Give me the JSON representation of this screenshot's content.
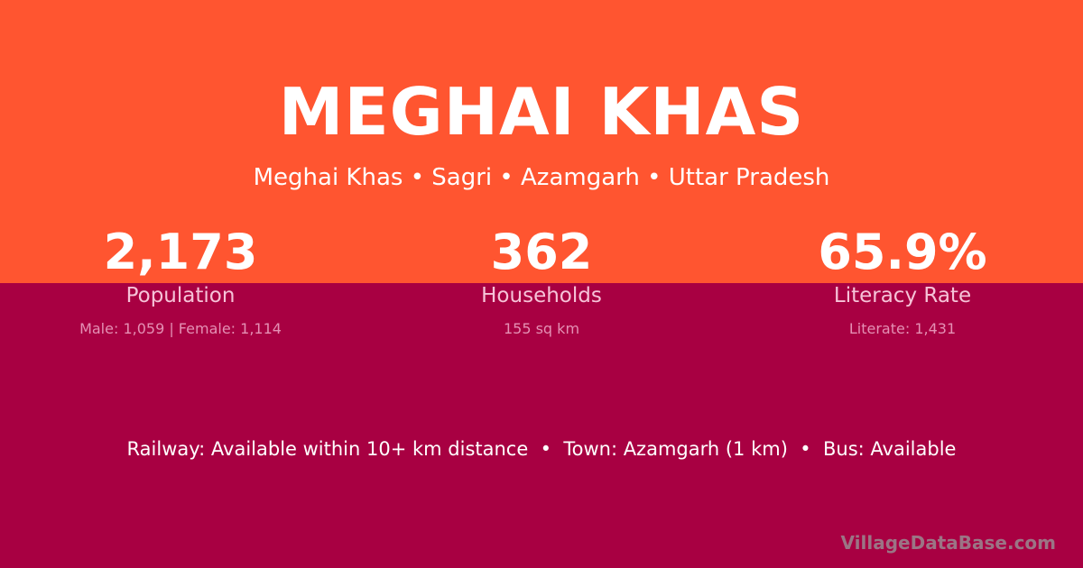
{
  "title": "MEGHAI KHAS",
  "subtitle": "Meghai Khas • Sagri • Azamgarh • Uttar Pradesh",
  "stats": [
    {
      "value": "2,173",
      "label": "Population",
      "detail": "Male: 1,059 | Female: 1,114"
    },
    {
      "value": "362",
      "label": "Households",
      "detail": "155 sq km"
    },
    {
      "value": "65.9%",
      "label": "Literacy Rate",
      "detail": "Literate: 1,431"
    }
  ],
  "info": "Railway: Available within 10+ km distance  •  Town: Azamgarh (1 km)  •  Bus: Available",
  "watermark": "VillageDataBase.com",
  "colors": {
    "top": "#ff5530",
    "bottom": "#a80042"
  }
}
